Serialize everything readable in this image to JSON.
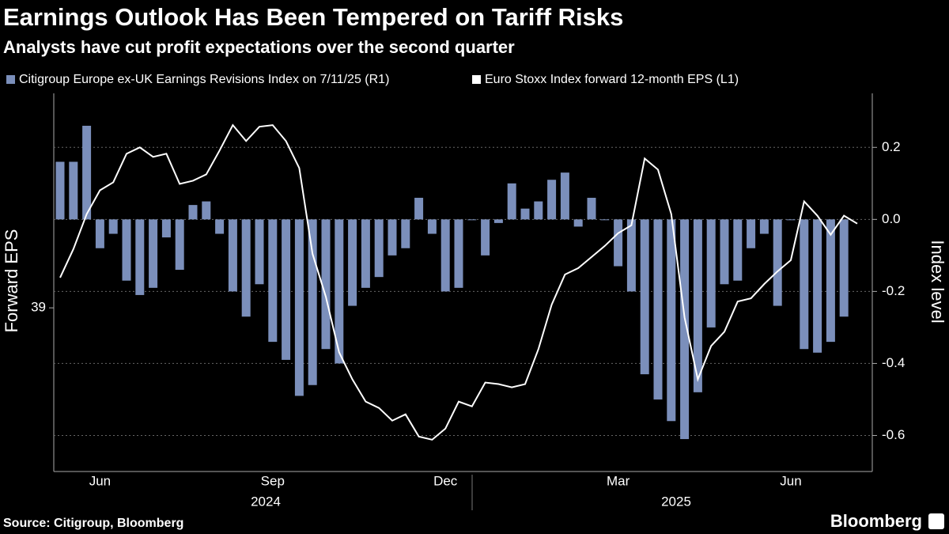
{
  "chart_data": {
    "type": "bar",
    "title": "Earnings Outlook Has Been Tempered on Tariff Risks",
    "subtitle": "Analysts have cut profit expectations over the second quarter",
    "source": "Source: Citigroup, Bloomberg",
    "brand": "Bloomberg",
    "ylabel": "Forward EPS",
    "y2label": "Index level",
    "categories": [
      null,
      null,
      null,
      "Jun",
      null,
      null,
      null,
      null,
      null,
      null,
      null,
      null,
      null,
      null,
      null,
      null,
      "Sep",
      null,
      null,
      null,
      null,
      null,
      null,
      null,
      null,
      null,
      null,
      null,
      null,
      "Dec",
      null,
      null,
      null,
      null,
      null,
      null,
      null,
      null,
      null,
      null,
      null,
      null,
      "Mar",
      null,
      null,
      null,
      null,
      null,
      null,
      null,
      null,
      null,
      null,
      null,
      null,
      "Jun",
      null,
      null,
      null,
      null,
      null
    ],
    "year_labels": [
      "2024",
      "2025"
    ],
    "series": [
      {
        "name": "Citigroup Europe ex-UK Earnings Revisions Index on 7/11/25 (R1)",
        "type": "bar",
        "axis": "y2",
        "color": "#7b8fbb",
        "values": [
          0.16,
          0.16,
          0.26,
          -0.08,
          -0.04,
          -0.17,
          -0.21,
          -0.19,
          -0.05,
          -0.14,
          0.04,
          0.05,
          -0.04,
          -0.2,
          -0.27,
          -0.18,
          -0.34,
          -0.39,
          -0.49,
          -0.46,
          -0.36,
          -0.4,
          -0.24,
          -0.19,
          -0.16,
          -0.1,
          -0.08,
          0.06,
          -0.04,
          -0.2,
          -0.19,
          0,
          -0.1,
          -0.01,
          0.1,
          0.03,
          0.05,
          0.11,
          0.13,
          -0.02,
          0.06,
          0,
          -0.13,
          -0.2,
          -0.43,
          -0.5,
          -0.56,
          -0.61,
          -0.48,
          -0.3,
          -0.18,
          -0.17,
          -0.08,
          -0.04,
          -0.24,
          0,
          -0.36,
          -0.37,
          -0.34,
          -0.27,
          null
        ]
      },
      {
        "name": "Euro Stoxx Index forward 12-month EPS (L1)",
        "type": "line",
        "color": "#ffffff",
        "values": [
          39.19,
          39.37,
          39.59,
          39.74,
          39.79,
          39.97,
          40.01,
          39.95,
          39.97,
          39.78,
          39.8,
          39.84,
          39.99,
          40.15,
          40.05,
          40.14,
          40.15,
          40.05,
          39.88,
          39.34,
          39.07,
          38.72,
          38.55,
          38.41,
          38.37,
          38.29,
          38.33,
          38.19,
          38.17,
          38.24,
          38.41,
          38.38,
          38.53,
          38.52,
          38.5,
          38.52,
          38.74,
          39.02,
          39.21,
          39.25,
          39.32,
          39.39,
          39.47,
          39.52,
          39.94,
          39.87,
          39.59,
          38.94,
          38.55,
          38.76,
          38.85,
          39.04,
          39.06,
          39.15,
          39.23,
          39.3,
          39.67,
          39.58,
          39.46,
          39.58,
          39.53
        ]
      }
    ],
    "ylim": [
      37.97,
      40.35
    ],
    "yticks": [
      39
    ],
    "y2lim": [
      -0.7,
      0.35
    ],
    "y2ticks": [
      0.2,
      {
        "value": 0,
        "label": "0.0"
      },
      -0.2,
      -0.4,
      -0.6
    ],
    "grid": true
  }
}
